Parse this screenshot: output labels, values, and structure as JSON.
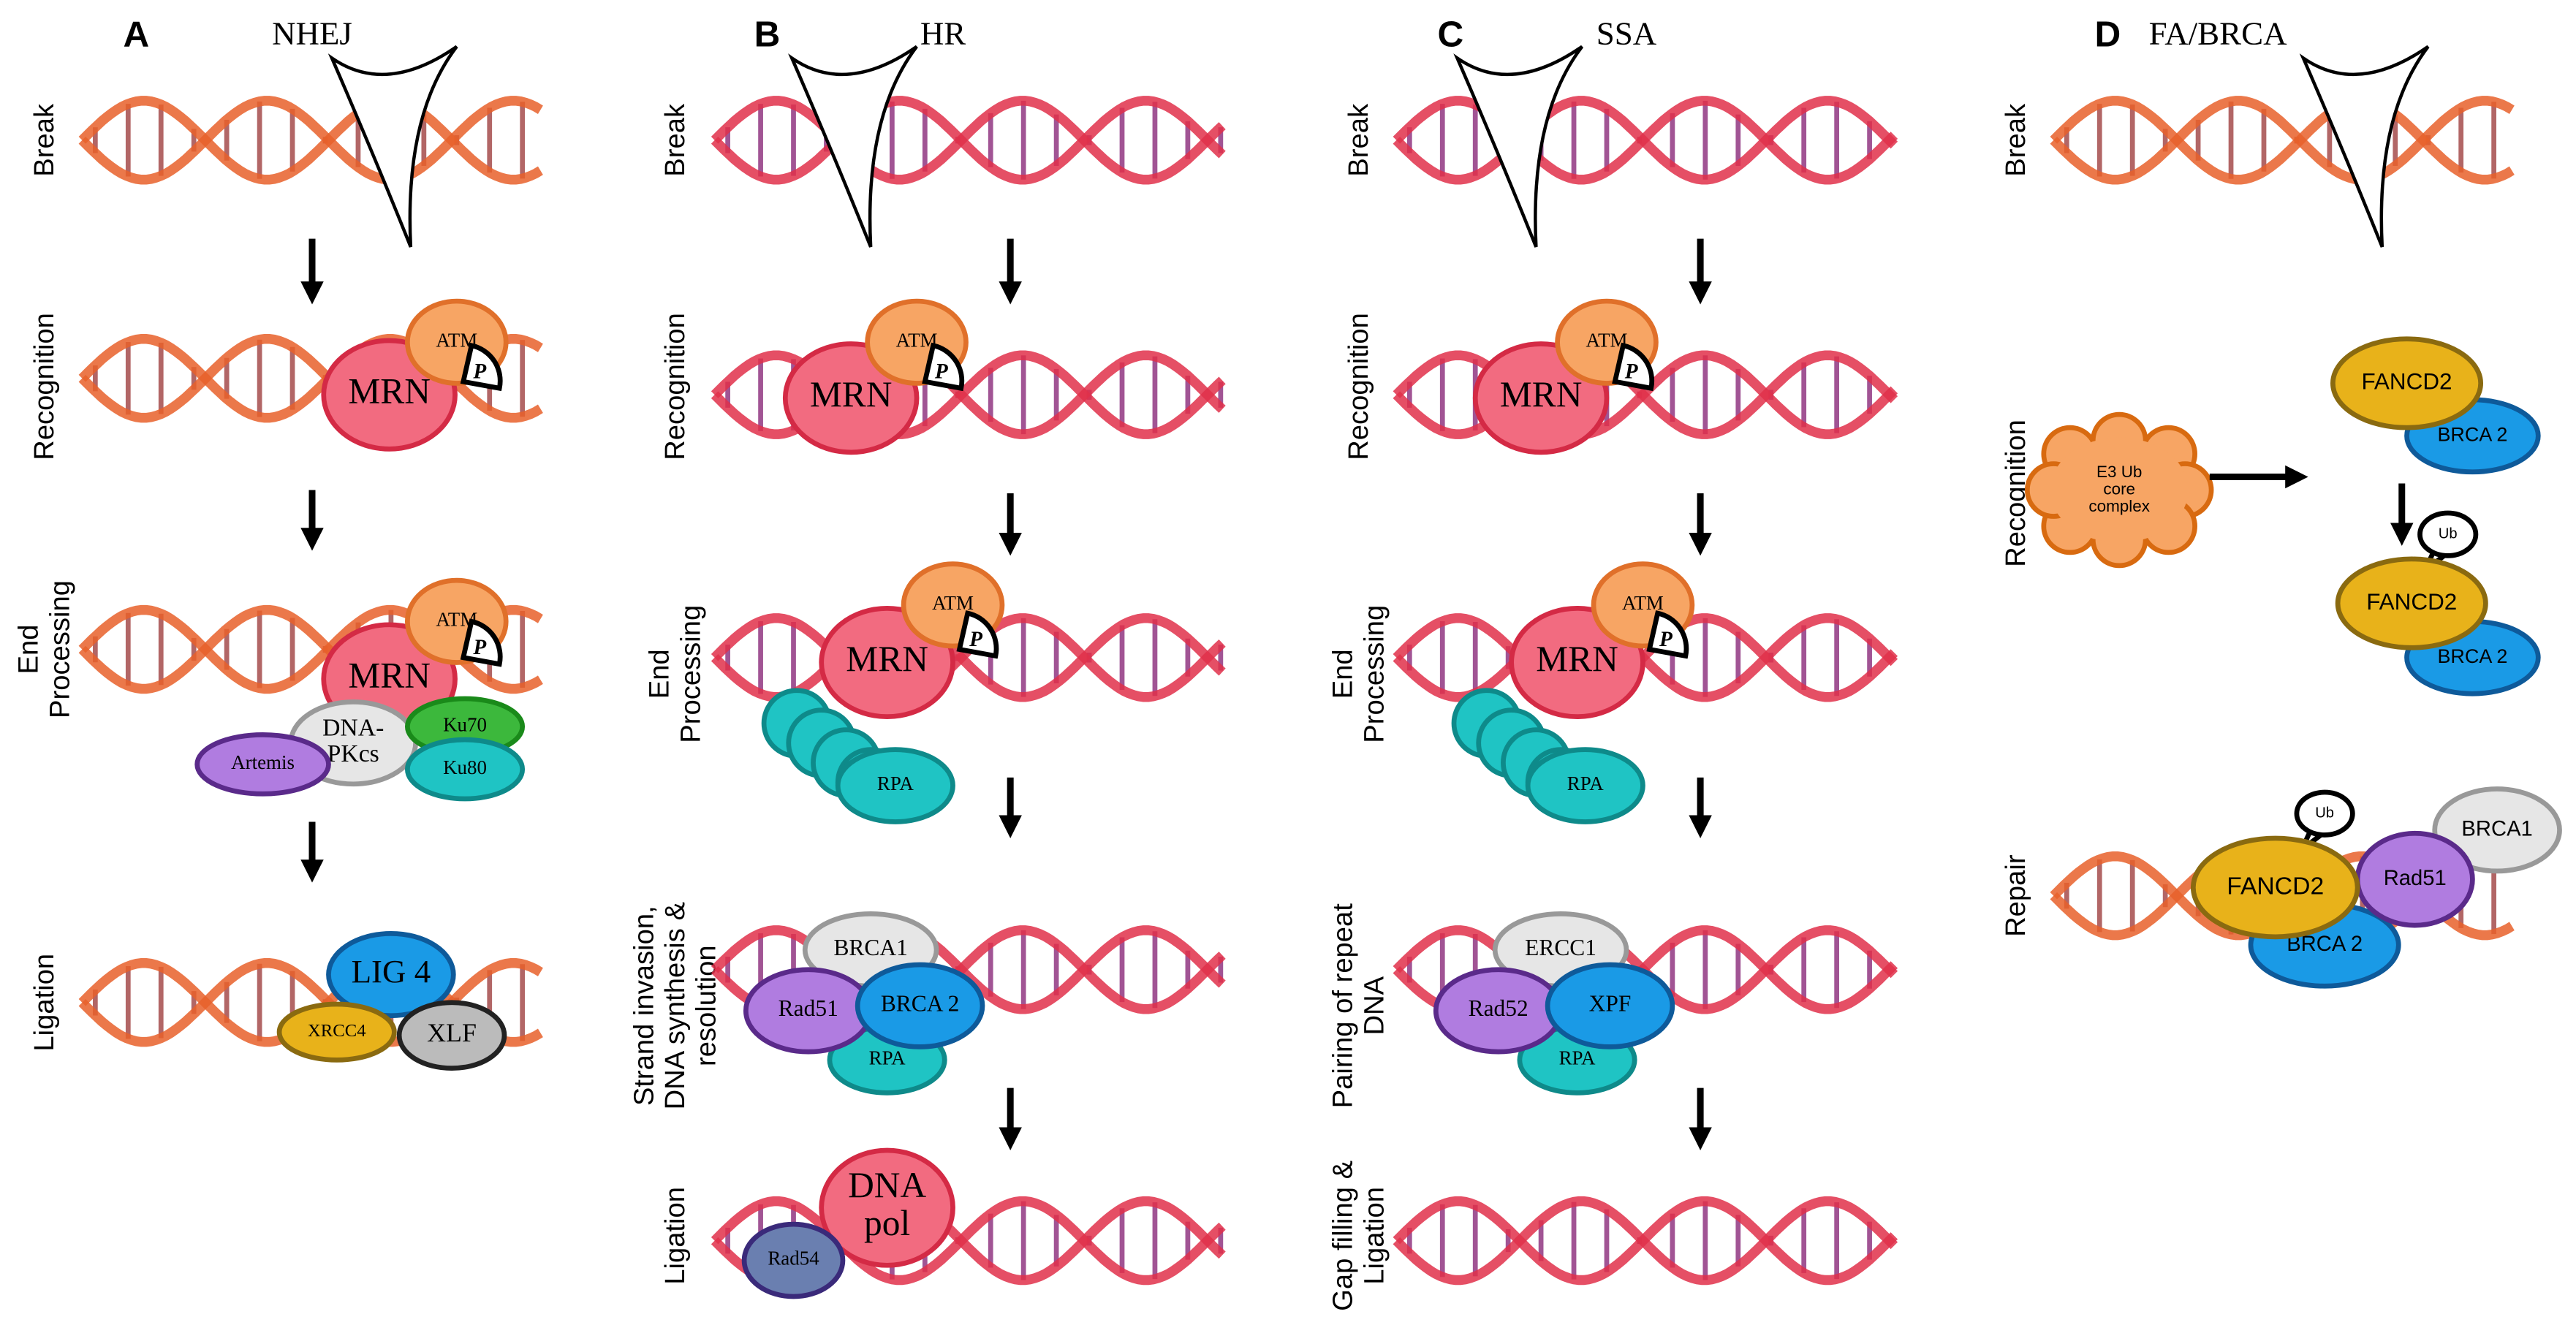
{
  "panels": [
    {
      "letter": "A",
      "title": "NHEJ",
      "steps": [
        {
          "label": [
            "Break"
          ]
        },
        {
          "label": [
            "Recognition"
          ],
          "proteins": [
            "MRN",
            "ATM",
            "P"
          ]
        },
        {
          "label": [
            "End",
            "Processing"
          ],
          "proteins": [
            "MRN",
            "ATM",
            "P",
            [
              "DNA-",
              "PKcs"
            ],
            "Ku70",
            "Ku80",
            "Artemis"
          ]
        },
        {
          "label": [
            "Ligation"
          ],
          "proteins": [
            "LIG 4",
            "XRCC4",
            "XLF"
          ]
        }
      ]
    },
    {
      "letter": "B",
      "title": "HR",
      "steps": [
        {
          "label": [
            "Break"
          ]
        },
        {
          "label": [
            "Recognition"
          ],
          "proteins": [
            "MRN",
            "ATM",
            "P"
          ]
        },
        {
          "label": [
            "End",
            "Processing"
          ],
          "proteins": [
            "MRN",
            "ATM",
            "P",
            "RPA"
          ]
        },
        {
          "label": [
            "Strand invasion,",
            "DNA synthesis &",
            "resolution"
          ],
          "proteins": [
            "BRCA1",
            "RPA",
            "Rad51",
            "BRCA 2"
          ]
        },
        {
          "label": [
            "Ligation"
          ],
          "proteins": [
            [
              "DNA",
              "pol"
            ],
            "Rad54"
          ]
        }
      ]
    },
    {
      "letter": "C",
      "title": "SSA",
      "steps": [
        {
          "label": [
            "Break"
          ]
        },
        {
          "label": [
            "Recognition"
          ],
          "proteins": [
            "MRN",
            "ATM",
            "P"
          ]
        },
        {
          "label": [
            "End",
            "Processing"
          ],
          "proteins": [
            "MRN",
            "ATM",
            "P",
            "RPA"
          ]
        },
        {
          "label": [
            "Pairing of repeat",
            "DNA"
          ],
          "proteins": [
            "ERCC1",
            "RPA",
            "Rad52",
            "XPF"
          ]
        },
        {
          "label": [
            "Gap filling &",
            "Ligation"
          ]
        }
      ]
    },
    {
      "letter": "D",
      "title": "FA/BRCA",
      "steps": [
        {
          "label": [
            "Break"
          ]
        },
        {
          "label": [
            "Recognition"
          ],
          "proteins": [
            [
              "E3 Ub",
              "core",
              "complex"
            ],
            "BRCA 2",
            "FANCD2",
            "Ub",
            "BRCA 2",
            "FANCD2"
          ]
        },
        {
          "label": [
            "Repair"
          ],
          "proteins": [
            "BRCA1",
            "Ub",
            "BRCA 2",
            "Rad51",
            "FANCD2"
          ]
        }
      ]
    }
  ]
}
